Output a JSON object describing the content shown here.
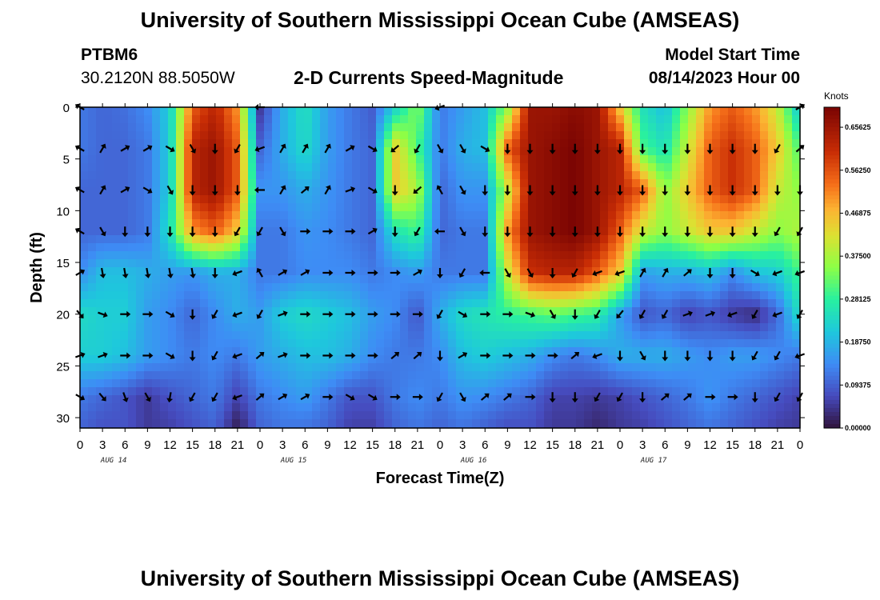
{
  "header": {
    "title": "University of Southern Mississippi Ocean Cube (AMSEAS)",
    "station": "PTBM6",
    "coords": "30.2120N  88.5050W",
    "subtitle": "2-D Currents Speed-Magnitude",
    "model_label": "Model Start Time",
    "model_date": "08/14/2023 Hour 00"
  },
  "footer": {
    "title": "University of Southern Mississippi Ocean Cube (AMSEAS)"
  },
  "colors": {
    "low": "#30123b",
    "high": "#7a0403",
    "arrow": "#000000"
  },
  "chart_data": {
    "type": "heatmap",
    "title": "2-D Currents Speed-Magnitude",
    "xlabel": "Forecast Time(Z)",
    "ylabel": "Depth (ft)",
    "x_ticks": [
      "0",
      "3",
      "6",
      "9",
      "12",
      "15",
      "18",
      "21",
      "0",
      "3",
      "6",
      "9",
      "12",
      "15",
      "18",
      "21",
      "0",
      "3",
      "6",
      "9",
      "12",
      "15",
      "18",
      "21",
      "0",
      "3",
      "6",
      "9",
      "12",
      "15",
      "18",
      "21",
      "0"
    ],
    "date_labels": [
      "AUG 14",
      "AUG 15",
      "AUG 16",
      "AUG 17"
    ],
    "y_ticks": [
      0,
      5,
      10,
      15,
      20,
      25,
      30
    ],
    "ylim": [
      0,
      31
    ],
    "xlim_hours": [
      0,
      96
    ],
    "colorbar": {
      "unit": "Knots",
      "min": 0.0,
      "max": 0.7,
      "labels": [
        "0.65625",
        "0.56250",
        "0.46875",
        "0.37500",
        "0.28125",
        "0.18750",
        "0.09375",
        "0.00000"
      ]
    },
    "depth_rows": [
      0,
      4,
      8,
      12,
      16,
      20,
      24,
      28,
      30.5
    ],
    "row_hours": [
      0,
      3,
      6,
      9,
      12,
      15,
      18,
      21,
      24,
      27,
      30,
      33,
      36,
      39,
      42,
      45,
      48,
      51,
      54,
      57,
      60,
      63,
      66,
      69,
      72,
      75,
      78,
      81,
      84,
      87,
      90,
      93,
      96
    ],
    "speed_knots": [
      [
        0.12,
        0.1,
        0.11,
        0.14,
        0.22,
        0.55,
        0.62,
        0.5,
        0.05,
        0.18,
        0.25,
        0.16,
        0.12,
        0.09,
        0.22,
        0.35,
        0.12,
        0.16,
        0.2,
        0.35,
        0.66,
        0.66,
        0.68,
        0.66,
        0.45,
        0.25,
        0.2,
        0.35,
        0.5,
        0.55,
        0.5,
        0.4,
        0.2
      ],
      [
        0.12,
        0.1,
        0.1,
        0.12,
        0.22,
        0.62,
        0.66,
        0.55,
        0.1,
        0.18,
        0.24,
        0.16,
        0.12,
        0.1,
        0.45,
        0.3,
        0.12,
        0.18,
        0.2,
        0.55,
        0.66,
        0.68,
        0.7,
        0.66,
        0.62,
        0.3,
        0.25,
        0.4,
        0.55,
        0.6,
        0.55,
        0.45,
        0.3
      ],
      [
        0.1,
        0.1,
        0.1,
        0.12,
        0.22,
        0.62,
        0.66,
        0.55,
        0.15,
        0.15,
        0.18,
        0.15,
        0.12,
        0.1,
        0.45,
        0.38,
        0.1,
        0.15,
        0.15,
        0.4,
        0.66,
        0.68,
        0.7,
        0.66,
        0.62,
        0.55,
        0.35,
        0.45,
        0.55,
        0.6,
        0.55,
        0.4,
        0.35
      ],
      [
        0.1,
        0.1,
        0.1,
        0.12,
        0.25,
        0.5,
        0.55,
        0.45,
        0.12,
        0.12,
        0.15,
        0.14,
        0.12,
        0.1,
        0.25,
        0.3,
        0.1,
        0.12,
        0.12,
        0.5,
        0.66,
        0.68,
        0.7,
        0.66,
        0.55,
        0.4,
        0.35,
        0.4,
        0.45,
        0.45,
        0.4,
        0.35,
        0.38
      ],
      [
        0.14,
        0.2,
        0.2,
        0.18,
        0.16,
        0.15,
        0.18,
        0.18,
        0.12,
        0.12,
        0.14,
        0.14,
        0.14,
        0.12,
        0.14,
        0.16,
        0.12,
        0.12,
        0.12,
        0.4,
        0.6,
        0.62,
        0.62,
        0.55,
        0.45,
        0.16,
        0.18,
        0.18,
        0.2,
        0.14,
        0.2,
        0.22,
        0.3
      ],
      [
        0.24,
        0.22,
        0.22,
        0.16,
        0.14,
        0.1,
        0.14,
        0.18,
        0.16,
        0.22,
        0.24,
        0.22,
        0.2,
        0.16,
        0.14,
        0.08,
        0.18,
        0.24,
        0.26,
        0.28,
        0.3,
        0.32,
        0.3,
        0.28,
        0.16,
        0.08,
        0.1,
        0.06,
        0.08,
        0.05,
        0.03,
        0.1,
        0.25
      ],
      [
        0.22,
        0.22,
        0.2,
        0.16,
        0.14,
        0.12,
        0.14,
        0.12,
        0.16,
        0.18,
        0.2,
        0.2,
        0.18,
        0.14,
        0.12,
        0.12,
        0.14,
        0.2,
        0.22,
        0.2,
        0.18,
        0.14,
        0.12,
        0.14,
        0.18,
        0.18,
        0.18,
        0.16,
        0.14,
        0.16,
        0.16,
        0.14,
        0.12
      ],
      [
        0.12,
        0.1,
        0.08,
        0.05,
        0.08,
        0.1,
        0.12,
        0.06,
        0.12,
        0.14,
        0.16,
        0.12,
        0.08,
        0.08,
        0.12,
        0.14,
        0.12,
        0.15,
        0.14,
        0.12,
        0.1,
        0.06,
        0.06,
        0.05,
        0.06,
        0.08,
        0.1,
        0.12,
        0.15,
        0.12,
        0.1,
        0.08,
        0.06
      ],
      [
        0.1,
        0.08,
        0.08,
        0.05,
        0.06,
        0.08,
        0.1,
        0.02,
        0.1,
        0.12,
        0.12,
        0.1,
        0.06,
        0.06,
        0.1,
        0.12,
        0.1,
        0.12,
        0.1,
        0.08,
        0.08,
        0.05,
        0.05,
        0.03,
        0.05,
        0.06,
        0.08,
        0.1,
        0.12,
        0.1,
        0.08,
        0.06,
        0.05
      ]
    ],
    "vector_depths": [
      0,
      4,
      8,
      12,
      16,
      20,
      24,
      28
    ],
    "vector_hours": [
      0,
      3,
      6,
      9,
      12,
      15,
      18,
      21,
      24,
      27,
      30,
      33,
      36,
      39,
      42,
      45,
      48,
      51,
      54,
      57,
      60,
      63,
      66,
      69,
      72,
      75,
      78,
      81,
      84,
      87,
      90,
      93,
      96
    ],
    "vector_dir_deg": [
      [
        150,
        null,
        null,
        null,
        null,
        null,
        null,
        null,
        180,
        null,
        null,
        null,
        null,
        null,
        null,
        null,
        200,
        null,
        null,
        null,
        null,
        null,
        null,
        null,
        null,
        null,
        null,
        null,
        null,
        null,
        null,
        null,
        30
      ],
      [
        150,
        60,
        30,
        30,
        330,
        300,
        270,
        240,
        200,
        60,
        60,
        60,
        30,
        330,
        220,
        240,
        300,
        300,
        330,
        270,
        270,
        270,
        270,
        270,
        270,
        270,
        270,
        270,
        270,
        270,
        270,
        240,
        40
      ],
      [
        150,
        60,
        30,
        330,
        300,
        270,
        270,
        270,
        180,
        60,
        40,
        60,
        20,
        330,
        270,
        220,
        120,
        300,
        270,
        270,
        270,
        270,
        270,
        270,
        270,
        270,
        270,
        270,
        270,
        270,
        270,
        270,
        270
      ],
      [
        150,
        300,
        270,
        270,
        270,
        270,
        270,
        240,
        240,
        300,
        0,
        0,
        0,
        30,
        270,
        240,
        180,
        300,
        270,
        270,
        270,
        270,
        270,
        270,
        270,
        270,
        270,
        270,
        270,
        270,
        270,
        240,
        240
      ],
      [
        30,
        280,
        280,
        280,
        280,
        280,
        270,
        200,
        120,
        30,
        30,
        0,
        0,
        0,
        0,
        30,
        270,
        240,
        180,
        300,
        300,
        270,
        240,
        200,
        200,
        60,
        60,
        40,
        270,
        270,
        330,
        200,
        200
      ],
      [
        310,
        340,
        0,
        0,
        330,
        270,
        240,
        200,
        240,
        20,
        0,
        0,
        0,
        0,
        0,
        0,
        240,
        330,
        0,
        0,
        340,
        300,
        270,
        240,
        230,
        240,
        240,
        20,
        20,
        200,
        240,
        200,
        240
      ],
      [
        20,
        20,
        0,
        0,
        330,
        270,
        240,
        200,
        40,
        20,
        0,
        0,
        0,
        0,
        40,
        40,
        270,
        30,
        0,
        0,
        0,
        0,
        40,
        200,
        270,
        300,
        270,
        270,
        270,
        270,
        240,
        240,
        200
      ],
      [
        330,
        310,
        290,
        300,
        260,
        240,
        240,
        200,
        40,
        30,
        30,
        0,
        330,
        330,
        0,
        0,
        240,
        300,
        40,
        40,
        0,
        270,
        270,
        240,
        240,
        270,
        40,
        40,
        0,
        0,
        270,
        240,
        240
      ]
    ]
  }
}
